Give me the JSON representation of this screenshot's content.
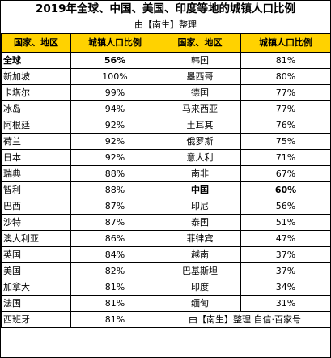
{
  "title": "2019年全球、中国、美国、印度等地的城镇人口比例",
  "subtitle": "由【南生】整理",
  "headers": [
    "国家、地区",
    "城镇人口比例",
    "国家、地区",
    "城镇人口比例"
  ],
  "footer_credit": "由【南生】整理 自信·百家号",
  "chart_data": {
    "type": "table",
    "title": "2019年全球、中国、美国、印度等地的城镇人口比例",
    "columns": [
      "国家、地区",
      "城镇人口比例"
    ],
    "left_column": [
      {
        "name": "全球",
        "value": "56%",
        "bold": true
      },
      {
        "name": "新加坡",
        "value": "100%"
      },
      {
        "name": "卡塔尔",
        "value": "99%"
      },
      {
        "name": "冰岛",
        "value": "94%"
      },
      {
        "name": "阿根廷",
        "value": "92%"
      },
      {
        "name": "荷兰",
        "value": "92%"
      },
      {
        "name": "日本",
        "value": "92%"
      },
      {
        "name": "瑞典",
        "value": "88%"
      },
      {
        "name": "智利",
        "value": "88%"
      },
      {
        "name": "巴西",
        "value": "87%"
      },
      {
        "name": "沙特",
        "value": "87%"
      },
      {
        "name": "澳大利亚",
        "value": "86%"
      },
      {
        "name": "英国",
        "value": "84%"
      },
      {
        "name": "美国",
        "value": "82%"
      },
      {
        "name": "加拿大",
        "value": "81%"
      },
      {
        "name": "法国",
        "value": "81%"
      },
      {
        "name": "西班牙",
        "value": "81%"
      }
    ],
    "right_column": [
      {
        "name": "韩国",
        "value": "81%"
      },
      {
        "name": "墨西哥",
        "value": "80%"
      },
      {
        "name": "德国",
        "value": "77%"
      },
      {
        "name": "马来西亚",
        "value": "77%"
      },
      {
        "name": "土耳其",
        "value": "76%"
      },
      {
        "name": "俄罗斯",
        "value": "75%"
      },
      {
        "name": "意大利",
        "value": "71%"
      },
      {
        "name": "南非",
        "value": "67%"
      },
      {
        "name": "中国",
        "value": "60%",
        "bold": true
      },
      {
        "name": "印尼",
        "value": "56%"
      },
      {
        "name": "泰国",
        "value": "51%"
      },
      {
        "name": "菲律宾",
        "value": "47%"
      },
      {
        "name": "越南",
        "value": "37%"
      },
      {
        "name": "巴基斯坦",
        "value": "37%"
      },
      {
        "name": "印度",
        "value": "34%"
      },
      {
        "name": "缅甸",
        "value": "31%"
      }
    ],
    "header_color": "#FFD200"
  }
}
